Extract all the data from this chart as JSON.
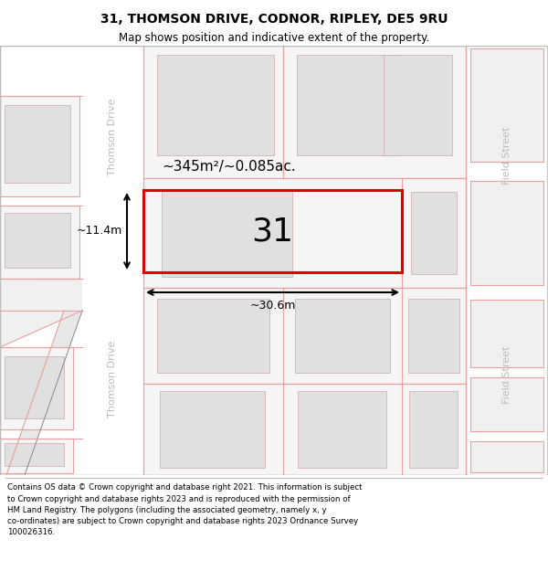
{
  "title": "31, THOMSON DRIVE, CODNOR, RIPLEY, DE5 9RU",
  "subtitle": "Map shows position and indicative extent of the property.",
  "footer_line1": "Contains OS data © Crown copyright and database right 2021. This information is subject",
  "footer_line2": "to Crown copyright and database rights 2023 and is reproduced with the permission of",
  "footer_line3": "HM Land Registry. The polygons (including the associated geometry, namely x, y",
  "footer_line4": "co-ordinates) are subject to Crown copyright and database rights 2023 Ordnance Survey",
  "footer_line5": "100026316.",
  "bg_map": "#f2f2f2",
  "road_fill": "#ffffff",
  "plot_border_color": "#dd0000",
  "road_line_color": "#e8a0a0",
  "building_fill": "#e0e0e0",
  "building_border": "#c0a0a0",
  "street_color": "#bbbbbb",
  "label_area": "~345m²/~0.085ac.",
  "label_number": "31",
  "label_width": "~30.6m",
  "label_height": "~11.4m",
  "street_left_top": "Thomson Drive",
  "street_left_bottom": "Thomson Drive",
  "street_right_top": "Field Street",
  "street_right_bottom": "Field Street"
}
